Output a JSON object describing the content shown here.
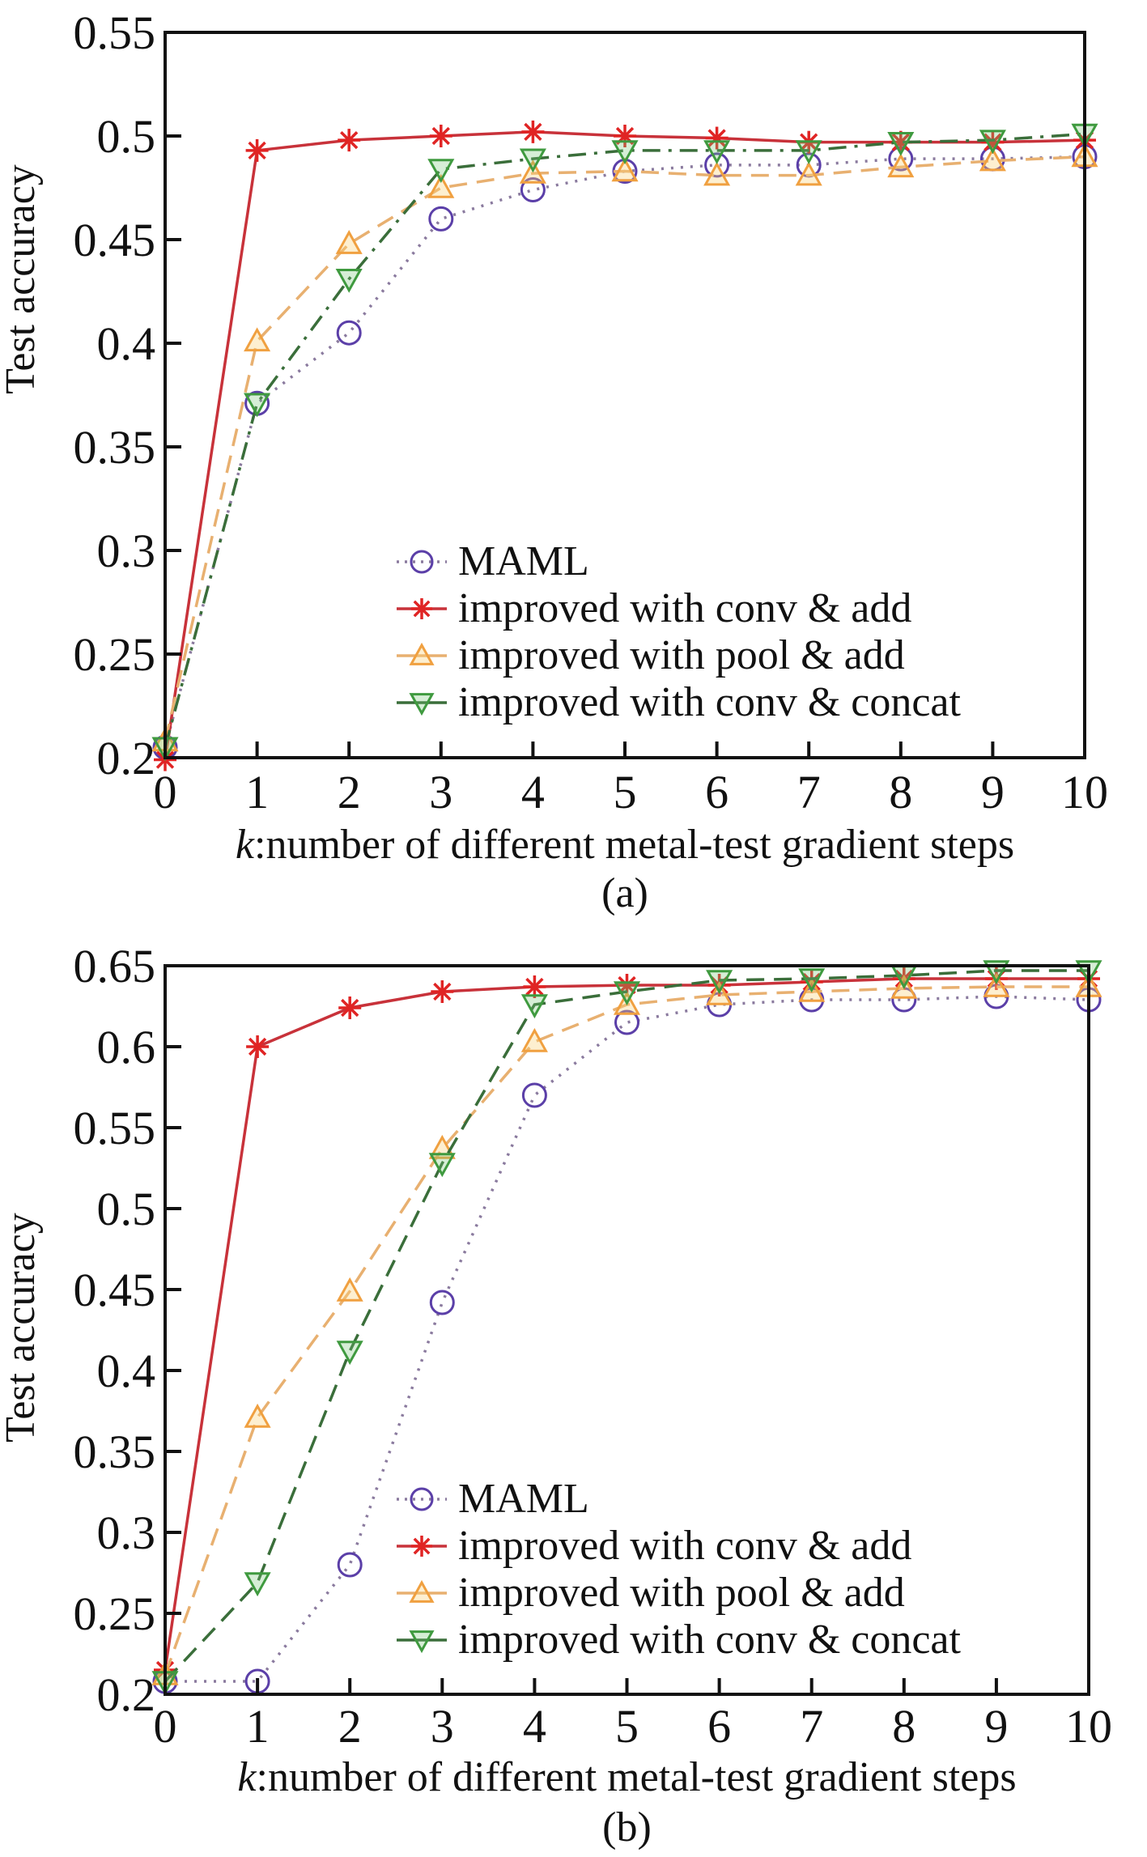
{
  "chart_data": [
    {
      "type": "line",
      "caption": "(a)",
      "xlabel_italic": "k",
      "xlabel_rest": ":number of different metal-test gradient steps",
      "ylabel": "Test accuracy",
      "xlim": [
        0,
        10
      ],
      "ylim": [
        0.2,
        0.55
      ],
      "x": [
        0,
        1,
        2,
        3,
        4,
        5,
        6,
        7,
        8,
        9,
        10
      ],
      "xticks": [
        "0",
        "1",
        "2",
        "3",
        "4",
        "5",
        "6",
        "7",
        "8",
        "9",
        "10"
      ],
      "yticks": [
        {
          "value": 0.2,
          "label": "0.2"
        },
        {
          "value": 0.25,
          "label": "0.25"
        },
        {
          "value": 0.3,
          "label": "0.3"
        },
        {
          "value": 0.35,
          "label": "0.35"
        },
        {
          "value": 0.4,
          "label": "0.4"
        },
        {
          "value": 0.45,
          "label": "0.45"
        },
        {
          "value": 0.5,
          "label": "0.5"
        },
        {
          "value": 0.55,
          "label": "0.55"
        }
      ],
      "grid": false,
      "legend_position": "bottom-right",
      "series": [
        {
          "name": "MAML",
          "color": "#5b3fa8",
          "line_color": "#8a7a9e",
          "style": "dotted",
          "marker": "circle",
          "values": [
            0.205,
            0.371,
            0.405,
            0.46,
            0.474,
            0.483,
            0.486,
            0.486,
            0.489,
            0.489,
            0.49
          ]
        },
        {
          "name": "improved with conv & add",
          "color": "#e02424",
          "line_color": "#c8323a",
          "style": "solid",
          "marker": "asterisk",
          "values": [
            0.199,
            0.493,
            0.498,
            0.5,
            0.502,
            0.5,
            0.499,
            0.497,
            0.497,
            0.497,
            0.498
          ]
        },
        {
          "name": "improved with pool & add",
          "color": "#f0a040",
          "line_color": "#e8b070",
          "style": "dashed",
          "marker": "triangle-up",
          "values": [
            0.208,
            0.401,
            0.448,
            0.475,
            0.482,
            0.483,
            0.481,
            0.481,
            0.485,
            0.488,
            0.49
          ]
        },
        {
          "name": "improved with conv & concat",
          "color": "#3f9a3f",
          "line_color": "#3a6e3a",
          "style": "dashdot",
          "marker": "triangle-down",
          "values": [
            0.205,
            0.371,
            0.431,
            0.484,
            0.489,
            0.493,
            0.493,
            0.493,
            0.497,
            0.498,
            0.501
          ]
        }
      ]
    },
    {
      "type": "line",
      "caption": "(b)",
      "xlabel_italic": "k",
      "xlabel_rest": ":number of different metal-test gradient steps",
      "ylabel": "Test accuracy",
      "xlim": [
        0,
        10
      ],
      "ylim": [
        0.2,
        0.65
      ],
      "x": [
        0,
        1,
        2,
        3,
        4,
        5,
        6,
        7,
        8,
        9,
        10
      ],
      "xticks": [
        "0",
        "1",
        "2",
        "3",
        "4",
        "5",
        "6",
        "7",
        "8",
        "9",
        "10"
      ],
      "yticks": [
        {
          "value": 0.2,
          "label": "0.2"
        },
        {
          "value": 0.25,
          "label": "0.25"
        },
        {
          "value": 0.3,
          "label": "0.3"
        },
        {
          "value": 0.35,
          "label": "0.35"
        },
        {
          "value": 0.4,
          "label": "0.4"
        },
        {
          "value": 0.45,
          "label": "0.45"
        },
        {
          "value": 0.5,
          "label": "0.5"
        },
        {
          "value": 0.55,
          "label": "0.55"
        },
        {
          "value": 0.6,
          "label": "0.6"
        },
        {
          "value": 0.65,
          "label": "0.65"
        }
      ],
      "grid": false,
      "legend_position": "bottom-right",
      "series": [
        {
          "name": "MAML",
          "color": "#5b3fa8",
          "line_color": "#8a7a9e",
          "style": "dotted",
          "marker": "circle",
          "values": [
            0.208,
            0.208,
            0.28,
            0.442,
            0.57,
            0.615,
            0.626,
            0.629,
            0.629,
            0.631,
            0.629
          ]
        },
        {
          "name": "improved with conv & add",
          "color": "#e02424",
          "line_color": "#c8323a",
          "style": "solid",
          "marker": "asterisk",
          "values": [
            0.215,
            0.6,
            0.624,
            0.634,
            0.637,
            0.638,
            0.638,
            0.64,
            0.642,
            0.642,
            0.642
          ]
        },
        {
          "name": "improved with pool & add",
          "color": "#f0a040",
          "line_color": "#e8b070",
          "style": "dashed",
          "marker": "triangle-up",
          "values": [
            0.212,
            0.371,
            0.449,
            0.537,
            0.603,
            0.626,
            0.632,
            0.634,
            0.636,
            0.637,
            0.637
          ]
        },
        {
          "name": "improved with conv & concat",
          "color": "#3f9a3f",
          "line_color": "#3a6e3a",
          "style": "dashed",
          "marker": "triangle-down",
          "values": [
            0.208,
            0.269,
            0.412,
            0.528,
            0.626,
            0.634,
            0.641,
            0.642,
            0.644,
            0.647,
            0.647
          ]
        }
      ]
    }
  ]
}
